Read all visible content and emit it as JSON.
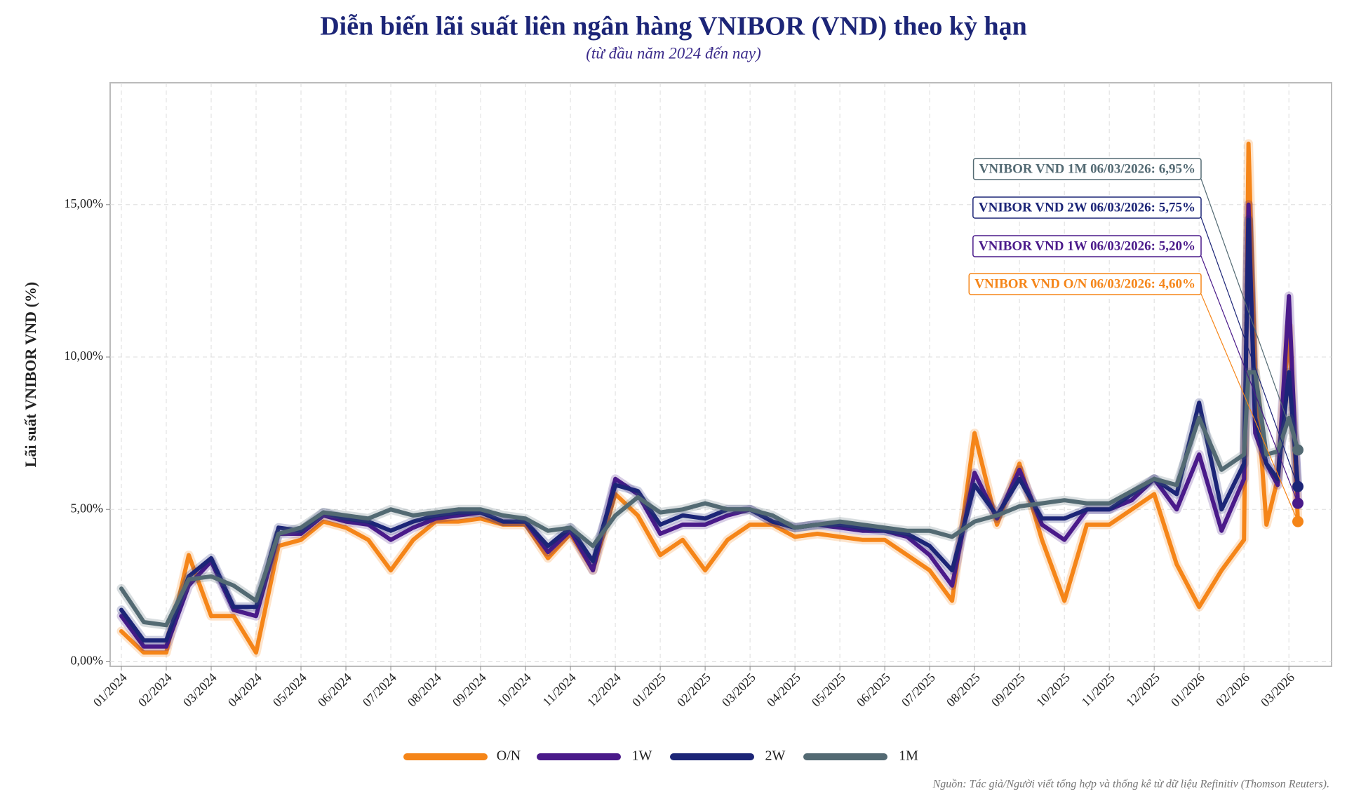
{
  "chart_data": {
    "type": "line",
    "title": "Diễn biến lãi suất liên ngân hàng VNIBOR (VND) theo kỳ hạn",
    "subtitle": "(từ đầu năm 2024 đến nay)",
    "ylabel": "Lãi suất VNIBOR VND (%)",
    "source": "Nguồn: Tác giả/Người viết tổng hợp và thống kê từ dữ liệu Refinitiv (Thomson Reuters).",
    "grid": true,
    "legend": "bottom",
    "xlim": [
      -0.25,
      26.95
    ],
    "xticks": [
      {
        "value": 0,
        "label": "01/2024"
      },
      {
        "value": 1,
        "label": "02/2024"
      },
      {
        "value": 2,
        "label": "03/2024"
      },
      {
        "value": 3,
        "label": "04/2024"
      },
      {
        "value": 4,
        "label": "05/2024"
      },
      {
        "value": 5,
        "label": "06/2024"
      },
      {
        "value": 6,
        "label": "07/2024"
      },
      {
        "value": 7,
        "label": "08/2024"
      },
      {
        "value": 8,
        "label": "09/2024"
      },
      {
        "value": 9,
        "label": "10/2024"
      },
      {
        "value": 10,
        "label": "11/2024"
      },
      {
        "value": 11,
        "label": "12/2024"
      },
      {
        "value": 12,
        "label": "01/2025"
      },
      {
        "value": 13,
        "label": "02/2025"
      },
      {
        "value": 14,
        "label": "03/2025"
      },
      {
        "value": 15,
        "label": "04/2025"
      },
      {
        "value": 16,
        "label": "05/2025"
      },
      {
        "value": 17,
        "label": "06/2025"
      },
      {
        "value": 18,
        "label": "07/2025"
      },
      {
        "value": 19,
        "label": "08/2025"
      },
      {
        "value": 20,
        "label": "09/2025"
      },
      {
        "value": 21,
        "label": "10/2025"
      },
      {
        "value": 22,
        "label": "11/2025"
      },
      {
        "value": 23,
        "label": "12/2025"
      },
      {
        "value": 24,
        "label": "01/2026"
      },
      {
        "value": 25,
        "label": "02/2026"
      },
      {
        "value": 26,
        "label": "03/2026"
      }
    ],
    "ylim": [
      -0.15,
      19
    ],
    "yticks": [
      {
        "value": 0,
        "label": "0,00%"
      },
      {
        "value": 5,
        "label": "5,00%"
      },
      {
        "value": 10,
        "label": "10,00%"
      },
      {
        "value": 15,
        "label": "15,00%"
      }
    ],
    "x": [
      0,
      0.5,
      1,
      1.5,
      2,
      2.5,
      3,
      3.5,
      4,
      4.5,
      5,
      5.5,
      6,
      6.5,
      7,
      7.5,
      8,
      8.5,
      9,
      9.5,
      10,
      10.5,
      11,
      11.5,
      12,
      12.5,
      13,
      13.5,
      14,
      14.5,
      15,
      15.5,
      16,
      16.5,
      17,
      17.5,
      18,
      18.5,
      19,
      19.5,
      20,
      20.5,
      21,
      21.5,
      22,
      22.5,
      23,
      23.5,
      24,
      24.5,
      25,
      25.1,
      25.25,
      25.5,
      25.75,
      26,
      26.2
    ],
    "series": [
      {
        "name": "O/N",
        "color": "#f58518",
        "annotation": "VNIBOR VND O/N 06/03/2026: 4,60%",
        "values": [
          1.0,
          0.3,
          0.3,
          3.5,
          1.5,
          1.5,
          0.3,
          3.8,
          4.0,
          4.6,
          4.4,
          4.0,
          3.0,
          4.0,
          4.6,
          4.6,
          4.7,
          4.5,
          4.5,
          3.4,
          4.2,
          3.0,
          5.5,
          4.8,
          3.5,
          4.0,
          3.0,
          4.0,
          4.5,
          4.5,
          4.1,
          4.2,
          4.1,
          4.0,
          4.0,
          3.5,
          3.0,
          2.0,
          7.5,
          4.5,
          6.5,
          4.0,
          2.0,
          4.5,
          4.5,
          5.0,
          5.5,
          3.2,
          1.8,
          3.0,
          4.0,
          17.0,
          9.5,
          4.5,
          6.0,
          11.0,
          4.6
        ]
      },
      {
        "name": "1W",
        "color": "#4a1a8a",
        "annotation": "VNIBOR VND 1W 06/03/2026: 5,20%",
        "values": [
          1.5,
          0.5,
          0.5,
          2.5,
          3.3,
          1.7,
          1.5,
          4.2,
          4.2,
          4.8,
          4.6,
          4.5,
          4.0,
          4.4,
          4.7,
          4.8,
          4.9,
          4.6,
          4.6,
          3.6,
          4.3,
          3.0,
          6.0,
          5.5,
          4.2,
          4.5,
          4.5,
          4.8,
          5.0,
          4.6,
          4.4,
          4.5,
          4.4,
          4.3,
          4.3,
          4.1,
          3.5,
          2.5,
          6.2,
          4.7,
          6.3,
          4.5,
          4.0,
          5.0,
          5.0,
          5.3,
          6.0,
          5.0,
          6.8,
          4.3,
          6.0,
          15.0,
          7.5,
          6.5,
          5.8,
          12.0,
          5.2
        ]
      },
      {
        "name": "2W",
        "color": "#1c2577",
        "annotation": "VNIBOR VND 2W 06/03/2026: 5,75%",
        "values": [
          1.7,
          0.7,
          0.7,
          2.8,
          3.4,
          1.8,
          1.8,
          4.4,
          4.3,
          4.9,
          4.7,
          4.6,
          4.3,
          4.6,
          4.8,
          4.9,
          4.9,
          4.6,
          4.6,
          3.8,
          4.4,
          3.3,
          5.8,
          5.6,
          4.5,
          4.8,
          4.7,
          5.0,
          5.0,
          4.6,
          4.4,
          4.5,
          4.5,
          4.4,
          4.3,
          4.2,
          3.8,
          3.0,
          5.8,
          4.8,
          6.0,
          4.7,
          4.7,
          5.0,
          5.0,
          5.5,
          6.0,
          5.5,
          8.5,
          5.0,
          6.5,
          14.5,
          8.0,
          6.5,
          6.0,
          9.5,
          5.75
        ]
      },
      {
        "name": "1M",
        "color": "#536a73",
        "annotation": "VNIBOR VND 1M 06/03/2026: 6,95%",
        "values": [
          2.4,
          1.3,
          1.2,
          2.7,
          2.8,
          2.5,
          2.0,
          4.2,
          4.4,
          4.9,
          4.8,
          4.7,
          5.0,
          4.8,
          4.9,
          5.0,
          5.0,
          4.8,
          4.7,
          4.3,
          4.4,
          3.8,
          4.8,
          5.4,
          4.9,
          5.0,
          5.2,
          5.0,
          5.0,
          4.8,
          4.4,
          4.5,
          4.6,
          4.5,
          4.4,
          4.3,
          4.3,
          4.1,
          4.6,
          4.8,
          5.1,
          5.2,
          5.3,
          5.2,
          5.2,
          5.6,
          6.0,
          5.8,
          8.0,
          6.3,
          6.8,
          9.5,
          9.5,
          6.8,
          6.9,
          8.0,
          6.95
        ]
      }
    ]
  }
}
